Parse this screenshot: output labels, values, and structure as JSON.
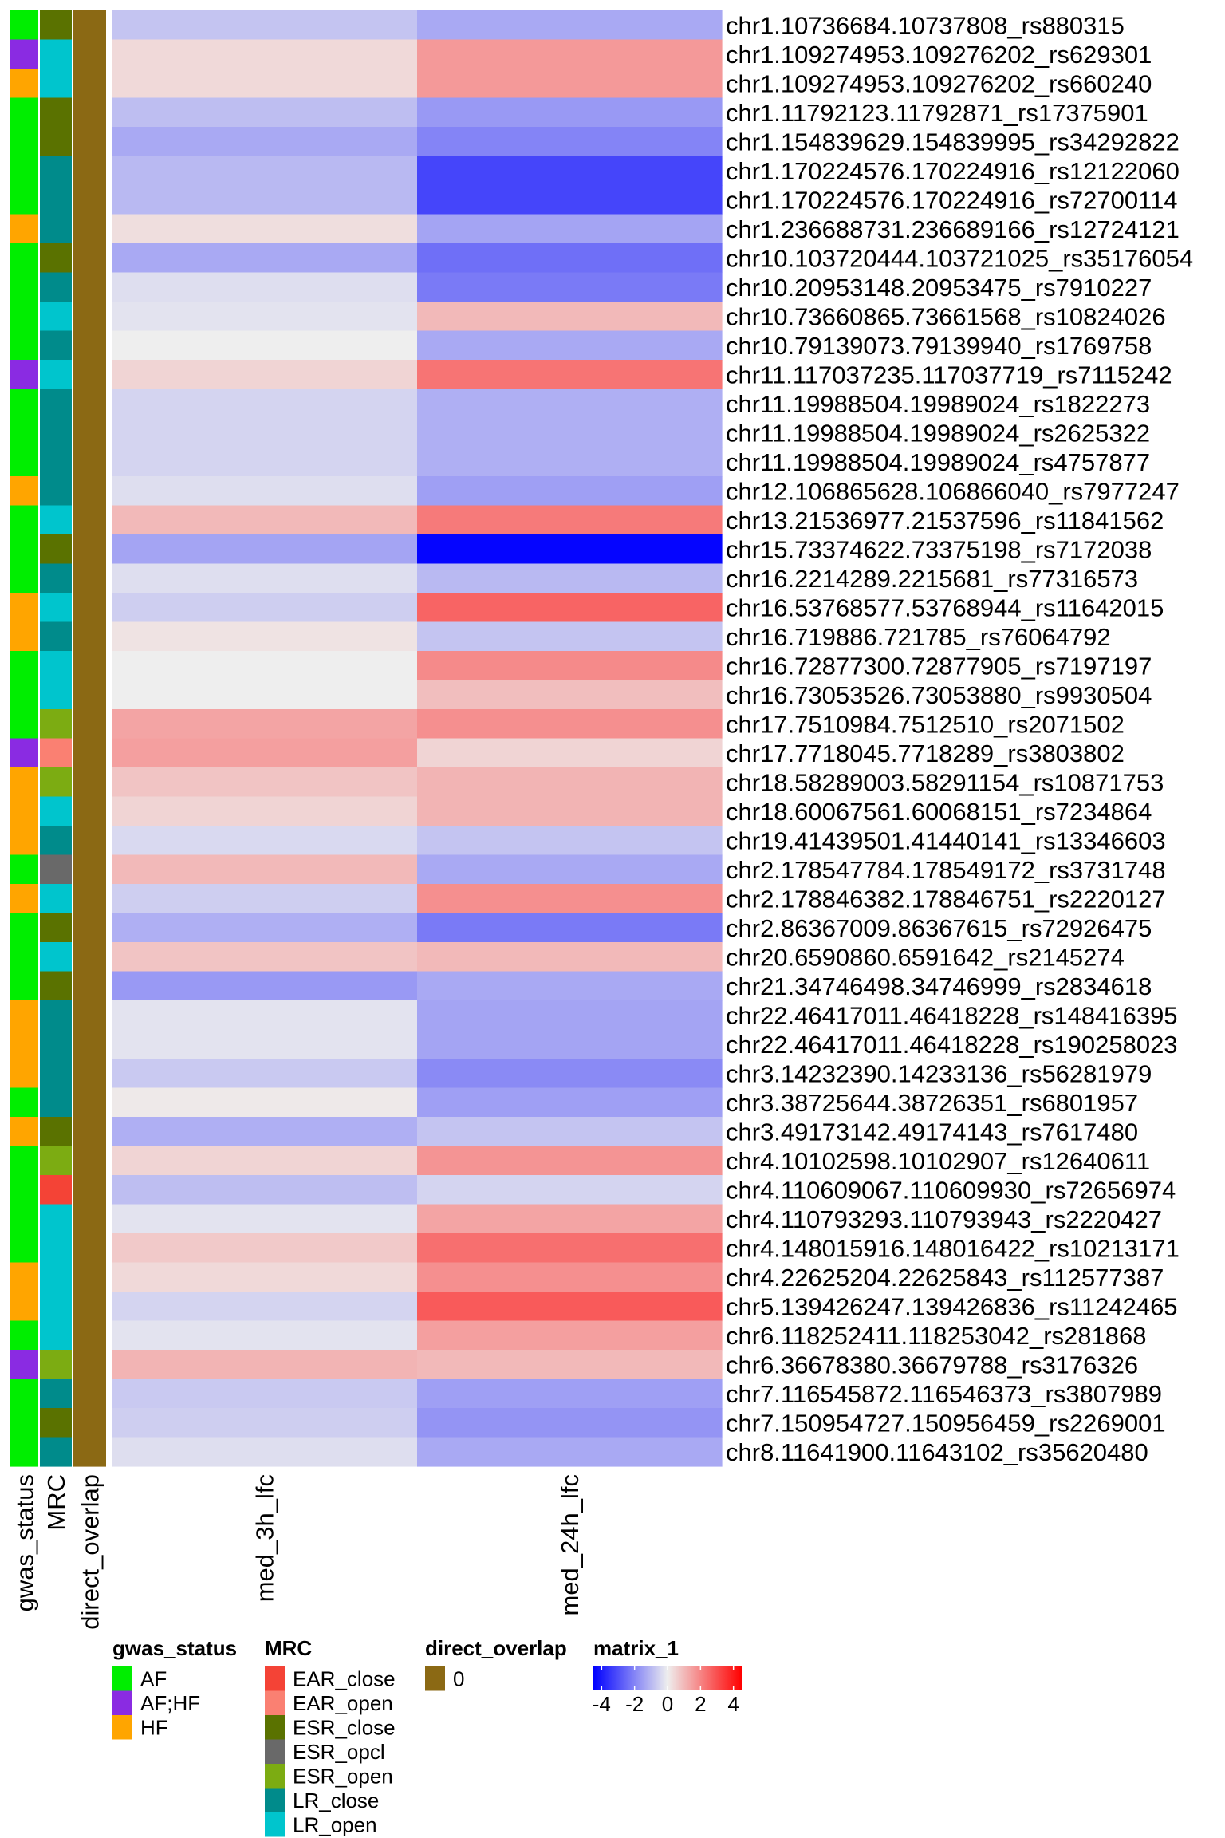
{
  "chart_data": {
    "type": "heatmap",
    "columns": [
      "med_3h_lfc",
      "med_24h_lfc"
    ],
    "annotation_columns": [
      "gwas_status",
      "MRC",
      "direct_overlap"
    ],
    "color_scale": {
      "name": "matrix_1",
      "min": -4.5,
      "max": 4.5,
      "ticks": [
        -4,
        -2,
        0,
        2,
        4
      ],
      "tick_labels": [
        "-4",
        "-2",
        "0",
        "2",
        "4"
      ],
      "colors": [
        "#0000ff",
        "#eeeeee",
        "#ff0000"
      ]
    },
    "rows": [
      {
        "label": "chr1.10736684.10737808_rs880315",
        "gwas": "AF",
        "mrc": "ESR_close",
        "overlap": "0",
        "values": [
          -0.8,
          -1.3
        ]
      },
      {
        "label": "chr1.109274953.109276202_rs629301",
        "gwas": "AF;HF",
        "mrc": "LR_open",
        "overlap": "0",
        "values": [
          0.4,
          1.6
        ]
      },
      {
        "label": "chr1.109274953.109276202_rs660240",
        "gwas": "HF",
        "mrc": "LR_open",
        "overlap": "0",
        "values": [
          0.4,
          1.6
        ]
      },
      {
        "label": "chr1.11792123.11792871_rs17375901",
        "gwas": "AF",
        "mrc": "ESR_close",
        "overlap": "0",
        "values": [
          -0.9,
          -1.6
        ]
      },
      {
        "label": "chr1.154839629.154839995_rs34292822",
        "gwas": "AF",
        "mrc": "ESR_close",
        "overlap": "0",
        "values": [
          -1.3,
          -2.0
        ]
      },
      {
        "label": "chr1.170224576.170224916_rs12122060",
        "gwas": "AF",
        "mrc": "LR_close",
        "overlap": "0",
        "values": [
          -1.0,
          -3.2
        ]
      },
      {
        "label": "chr1.170224576.170224916_rs72700114",
        "gwas": "AF",
        "mrc": "LR_close",
        "overlap": "0",
        "values": [
          -1.0,
          -3.2
        ]
      },
      {
        "label": "chr1.236688731.236689166_rs12724121",
        "gwas": "HF",
        "mrc": "LR_close",
        "overlap": "0",
        "values": [
          0.3,
          -1.4
        ]
      },
      {
        "label": "chr10.103720444.103721025_rs35176054",
        "gwas": "AF",
        "mrc": "ESR_close",
        "overlap": "0",
        "values": [
          -1.3,
          -2.4
        ]
      },
      {
        "label": "chr10.20953148.20953475_rs7910227",
        "gwas": "AF",
        "mrc": "LR_close",
        "overlap": "0",
        "values": [
          -0.3,
          -2.2
        ]
      },
      {
        "label": "chr10.73660865.73661568_rs10824026",
        "gwas": "AF",
        "mrc": "LR_open",
        "overlap": "0",
        "values": [
          -0.2,
          1.0
        ]
      },
      {
        "label": "chr10.79139073.79139940_rs1769758",
        "gwas": "AF",
        "mrc": "LR_close",
        "overlap": "0",
        "values": [
          0.0,
          -1.3
        ]
      },
      {
        "label": "chr11.117037235.117037719_rs7115242",
        "gwas": "AF;HF",
        "mrc": "LR_open",
        "overlap": "0",
        "values": [
          0.5,
          2.3
        ]
      },
      {
        "label": "chr11.19988504.19989024_rs1822273",
        "gwas": "AF",
        "mrc": "LR_close",
        "overlap": "0",
        "values": [
          -0.5,
          -1.2
        ]
      },
      {
        "label": "chr11.19988504.19989024_rs2625322",
        "gwas": "AF",
        "mrc": "LR_close",
        "overlap": "0",
        "values": [
          -0.5,
          -1.2
        ]
      },
      {
        "label": "chr11.19988504.19989024_rs4757877",
        "gwas": "AF",
        "mrc": "LR_close",
        "overlap": "0",
        "values": [
          -0.5,
          -1.2
        ]
      },
      {
        "label": "chr12.106865628.106866040_rs7977247",
        "gwas": "HF",
        "mrc": "LR_close",
        "overlap": "0",
        "values": [
          -0.3,
          -1.5
        ]
      },
      {
        "label": "chr13.21536977.21537596_rs11841562",
        "gwas": "AF",
        "mrc": "LR_open",
        "overlap": "0",
        "values": [
          1.0,
          2.2
        ]
      },
      {
        "label": "chr15.73374622.73375198_rs7172038",
        "gwas": "AF",
        "mrc": "ESR_close",
        "overlap": "0",
        "values": [
          -1.4,
          -4.4
        ]
      },
      {
        "label": "chr16.2214289.2215681_rs77316573",
        "gwas": "AF",
        "mrc": "LR_close",
        "overlap": "0",
        "values": [
          -0.3,
          -1.0
        ]
      },
      {
        "label": "chr16.53768577.53768944_rs11642015",
        "gwas": "HF",
        "mrc": "LR_open",
        "overlap": "0",
        "values": [
          -0.6,
          2.6
        ]
      },
      {
        "label": "chr16.719886.721785_rs76064792",
        "gwas": "HF",
        "mrc": "LR_close",
        "overlap": "0",
        "values": [
          0.2,
          -0.8
        ]
      },
      {
        "label": "chr16.72877300.72877905_rs7197197",
        "gwas": "AF",
        "mrc": "LR_open",
        "overlap": "0",
        "values": [
          0.0,
          1.9
        ]
      },
      {
        "label": "chr16.73053526.73053880_rs9930504",
        "gwas": "AF",
        "mrc": "LR_open",
        "overlap": "0",
        "values": [
          0.0,
          0.9
        ]
      },
      {
        "label": "chr17.7510984.7512510_rs2071502",
        "gwas": "AF",
        "mrc": "ESR_open",
        "overlap": "0",
        "values": [
          1.4,
          1.8
        ]
      },
      {
        "label": "chr17.7718045.7718289_rs3803802",
        "gwas": "AF;HF",
        "mrc": "EAR_open",
        "overlap": "0",
        "values": [
          1.5,
          0.5
        ]
      },
      {
        "label": "chr18.58289003.58291154_rs10871753",
        "gwas": "HF",
        "mrc": "ESR_open",
        "overlap": "0",
        "values": [
          0.8,
          1.1
        ]
      },
      {
        "label": "chr18.60067561.60068151_rs7234864",
        "gwas": "HF",
        "mrc": "LR_open",
        "overlap": "0",
        "values": [
          0.5,
          1.1
        ]
      },
      {
        "label": "chr19.41439501.41440141_rs13346603",
        "gwas": "HF",
        "mrc": "LR_close",
        "overlap": "0",
        "values": [
          -0.4,
          -0.8
        ]
      },
      {
        "label": "chr2.178547784.178549172_rs3731748",
        "gwas": "AF",
        "mrc": "ESR_opcl",
        "overlap": "0",
        "values": [
          1.0,
          -1.3
        ]
      },
      {
        "label": "chr2.178846382.178846751_rs2220127",
        "gwas": "HF",
        "mrc": "LR_open",
        "overlap": "0",
        "values": [
          -0.6,
          1.8
        ]
      },
      {
        "label": "chr2.86367009.86367615_rs72926475",
        "gwas": "AF",
        "mrc": "ESR_close",
        "overlap": "0",
        "values": [
          -1.2,
          -2.2
        ]
      },
      {
        "label": "chr20.6590860.6591642_rs2145274",
        "gwas": "AF",
        "mrc": "LR_open",
        "overlap": "0",
        "values": [
          0.8,
          1.0
        ]
      },
      {
        "label": "chr21.34746498.34746999_rs2834618",
        "gwas": "AF",
        "mrc": "ESR_close",
        "overlap": "0",
        "values": [
          -1.6,
          -1.3
        ]
      },
      {
        "label": "chr22.46417011.46418228_rs148416395",
        "gwas": "HF",
        "mrc": "LR_close",
        "overlap": "0",
        "values": [
          -0.2,
          -1.4
        ]
      },
      {
        "label": "chr22.46417011.46418228_rs190258023",
        "gwas": "HF",
        "mrc": "LR_close",
        "overlap": "0",
        "values": [
          -0.2,
          -1.4
        ]
      },
      {
        "label": "chr3.14232390.14233136_rs56281979",
        "gwas": "HF",
        "mrc": "LR_close",
        "overlap": "0",
        "values": [
          -0.7,
          -1.9
        ]
      },
      {
        "label": "chr3.38725644.38726351_rs6801957",
        "gwas": "AF",
        "mrc": "LR_close",
        "overlap": "0",
        "values": [
          0.1,
          -1.5
        ]
      },
      {
        "label": "chr3.49173142.49174143_rs7617480",
        "gwas": "HF",
        "mrc": "ESR_close",
        "overlap": "0",
        "values": [
          -1.2,
          -0.8
        ]
      },
      {
        "label": "chr4.10102598.10102907_rs12640611",
        "gwas": "AF",
        "mrc": "ESR_open",
        "overlap": "0",
        "values": [
          0.5,
          1.7
        ]
      },
      {
        "label": "chr4.110609067.110609930_rs72656974",
        "gwas": "AF",
        "mrc": "EAR_close",
        "overlap": "0",
        "values": [
          -0.9,
          -0.5
        ]
      },
      {
        "label": "chr4.110793293.110793943_rs2220427",
        "gwas": "AF",
        "mrc": "LR_open",
        "overlap": "0",
        "values": [
          -0.2,
          1.4
        ]
      },
      {
        "label": "chr4.148015916.148016422_rs10213171",
        "gwas": "AF",
        "mrc": "LR_open",
        "overlap": "0",
        "values": [
          0.7,
          2.4
        ]
      },
      {
        "label": "chr4.22625204.22625843_rs112577387",
        "gwas": "HF",
        "mrc": "LR_open",
        "overlap": "0",
        "values": [
          0.4,
          1.8
        ]
      },
      {
        "label": "chr5.139426247.139426836_rs11242465",
        "gwas": "HF",
        "mrc": "LR_open",
        "overlap": "0",
        "values": [
          -0.5,
          2.8
        ]
      },
      {
        "label": "chr6.118252411.118253042_rs281868",
        "gwas": "AF",
        "mrc": "LR_open",
        "overlap": "0",
        "values": [
          -0.2,
          1.5
        ]
      },
      {
        "label": "chr6.36678380.36679788_rs3176326",
        "gwas": "AF;HF",
        "mrc": "ESR_open",
        "overlap": "0",
        "values": [
          1.1,
          1.0
        ]
      },
      {
        "label": "chr7.116545872.116546373_rs3807989",
        "gwas": "AF",
        "mrc": "LR_close",
        "overlap": "0",
        "values": [
          -0.7,
          -1.5
        ]
      },
      {
        "label": "chr7.150954727.150956459_rs2269001",
        "gwas": "AF",
        "mrc": "ESR_close",
        "overlap": "0",
        "values": [
          -0.6,
          -1.7
        ]
      },
      {
        "label": "chr8.11641900.11643102_rs35620480",
        "gwas": "AF",
        "mrc": "LR_close",
        "overlap": "0",
        "values": [
          -0.3,
          -1.3
        ]
      }
    ]
  },
  "legends": {
    "gwas_status": {
      "title": "gwas_status",
      "items": [
        {
          "label": "AF",
          "color": "#00ee00"
        },
        {
          "label": "AF;HF",
          "color": "#8a2be2"
        },
        {
          "label": "HF",
          "color": "#ffa500"
        }
      ]
    },
    "mrc": {
      "title": "MRC",
      "items": [
        {
          "label": "EAR_close",
          "color": "#f44336"
        },
        {
          "label": "EAR_open",
          "color": "#fa8072"
        },
        {
          "label": "ESR_close",
          "color": "#5a7200"
        },
        {
          "label": "ESR_opcl",
          "color": "#696969"
        },
        {
          "label": "ESR_open",
          "color": "#7cac12"
        },
        {
          "label": "LR_close",
          "color": "#008b8b"
        },
        {
          "label": "LR_open",
          "color": "#00c5cd"
        }
      ]
    },
    "direct_overlap": {
      "title": "direct_overlap",
      "items": [
        {
          "label": "0",
          "color": "#8b6914"
        }
      ]
    },
    "matrix": {
      "title": "matrix_1"
    }
  }
}
